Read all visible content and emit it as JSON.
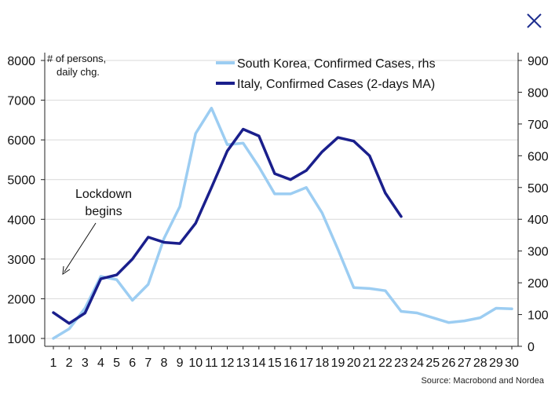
{
  "window": {
    "close_icon": "close-icon",
    "accent_color": "#1f2f8f"
  },
  "chart_data": {
    "type": "line",
    "x": [
      1,
      2,
      3,
      4,
      5,
      6,
      7,
      8,
      9,
      10,
      11,
      12,
      13,
      14,
      15,
      16,
      17,
      18,
      19,
      20,
      21,
      22,
      23,
      24,
      25,
      26,
      27,
      28,
      29,
      30
    ],
    "xlim": [
      1,
      30
    ],
    "ylim_left": [
      1000,
      8000
    ],
    "ylim_right": [
      0,
      900
    ],
    "left_ticks": [
      1000,
      2000,
      3000,
      4000,
      5000,
      6000,
      7000,
      8000
    ],
    "right_ticks": [
      0,
      100,
      200,
      300,
      400,
      500,
      600,
      700,
      800,
      900
    ],
    "y_unit_label_line1": "# of persons,",
    "y_unit_label_line2": "daily chg.",
    "grid": true,
    "legend_position": "top-center",
    "series": [
      {
        "name": "South Korea, Confirmed Cases, rhs",
        "axis": "right",
        "color": "#9ccdf2",
        "values": [
          25,
          55,
          120,
          220,
          210,
          145,
          195,
          340,
          440,
          670,
          750,
          635,
          640,
          565,
          480,
          480,
          500,
          420,
          305,
          185,
          182,
          175,
          110,
          105,
          90,
          75,
          80,
          90,
          120,
          118
        ]
      },
      {
        "name": "Italy, Confirmed Cases (2-days MA)",
        "axis": "left",
        "color": "#1a1f8c",
        "values": [
          1650,
          1380,
          1640,
          2500,
          2600,
          3000,
          3550,
          3420,
          3390,
          3900,
          4800,
          5720,
          6270,
          6100,
          5150,
          5000,
          5230,
          5700,
          6060,
          5970,
          5600,
          4660,
          4070,
          null,
          null,
          null,
          null,
          null,
          null,
          null
        ]
      }
    ],
    "annotation": {
      "line1": "Lockdown",
      "line2": "begins",
      "arrow_to_day": 2
    },
    "source": "Source: Macrobond and Nordea"
  }
}
